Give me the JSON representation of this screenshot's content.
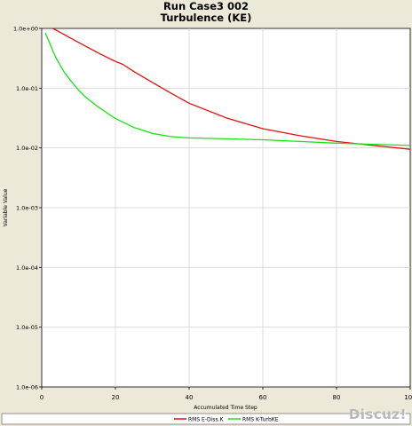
{
  "chart_data": {
    "type": "line",
    "title": "Run Case3 002",
    "subtitle": "Turbulence (KE)",
    "xlabel": "Accumulated Time Step",
    "ylabel": "Variable Value",
    "xlim": [
      0,
      100
    ],
    "ylim": [
      1e-06,
      1
    ],
    "yscale": "log",
    "x_ticks": [
      "0",
      "20",
      "40",
      "60",
      "80",
      "100"
    ],
    "y_ticks": [
      "1.0e-06",
      "1.0e-05",
      "1.0e-04",
      "1.0e-03",
      "1.0e-02",
      "1.0e-01",
      "1.0e+00"
    ],
    "grid": true,
    "legend_position": "bottom",
    "series": [
      {
        "name": "RMS E-Diss.K",
        "color": "#e01010",
        "x": [
          3,
          5,
          8,
          12,
          16,
          20,
          22,
          25,
          30,
          35,
          40,
          50,
          60,
          70,
          80,
          90,
          100
        ],
        "y": [
          1.0,
          0.86,
          0.68,
          0.5,
          0.37,
          0.28,
          0.25,
          0.19,
          0.125,
          0.083,
          0.056,
          0.032,
          0.021,
          0.016,
          0.0128,
          0.011,
          0.0095
        ]
      },
      {
        "name": "RMS K-TurbKE",
        "color": "#19e019",
        "x": [
          1,
          2,
          3,
          4,
          6,
          8,
          10,
          12,
          15,
          20,
          25,
          30,
          35,
          40,
          50,
          60,
          70,
          80,
          90,
          100
        ],
        "y": [
          0.83,
          0.6,
          0.42,
          0.31,
          0.19,
          0.13,
          0.093,
          0.07,
          0.05,
          0.031,
          0.022,
          0.0175,
          0.0155,
          0.0147,
          0.0142,
          0.0137,
          0.0128,
          0.012,
          0.0115,
          0.011
        ]
      }
    ]
  },
  "watermark": "Discuz!"
}
